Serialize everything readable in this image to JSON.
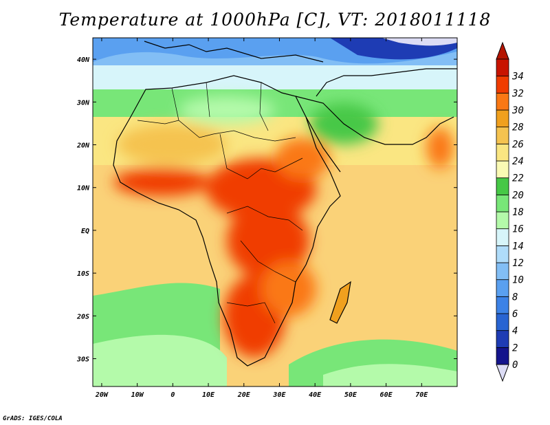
{
  "title": "Temperature at 1000hPa [C], VT: 2018011118",
  "credit": "GrADS: IGES/COLA",
  "lon_ticks": [
    "20W",
    "10W",
    "0",
    "10E",
    "20E",
    "30E",
    "40E",
    "50E",
    "60E",
    "70E"
  ],
  "lat_ticks": [
    "40N",
    "30N",
    "20N",
    "10N",
    "EQ",
    "10S",
    "20S",
    "30S"
  ],
  "lon_values": [
    -20,
    -10,
    0,
    10,
    20,
    30,
    40,
    50,
    60,
    70
  ],
  "lat_values": [
    40,
    30,
    20,
    10,
    0,
    -10,
    -20,
    -30
  ],
  "extent": {
    "lon_min": -22.5,
    "lon_max": 80,
    "lat_min": -36.5,
    "lat_max": 45
  },
  "colorbar": {
    "levels": [
      "0",
      "2",
      "4",
      "6",
      "8",
      "10",
      "12",
      "14",
      "16",
      "18",
      "20",
      "22",
      "24",
      "26",
      "28",
      "30",
      "32",
      "34"
    ],
    "colors": [
      "#14148c",
      "#1e3cb4",
      "#2864d2",
      "#3c82e6",
      "#5aa0f0",
      "#82bef5",
      "#afdcfa",
      "#d7f5fa",
      "#b4faaa",
      "#78e678",
      "#46c846",
      "#fafab4",
      "#fae682",
      "#f5c350",
      "#f0a01e",
      "#fa7814",
      "#f03c00",
      "#c81400"
    ],
    "below_color": "#dcdcf5",
    "above_color": "#b41400"
  }
}
